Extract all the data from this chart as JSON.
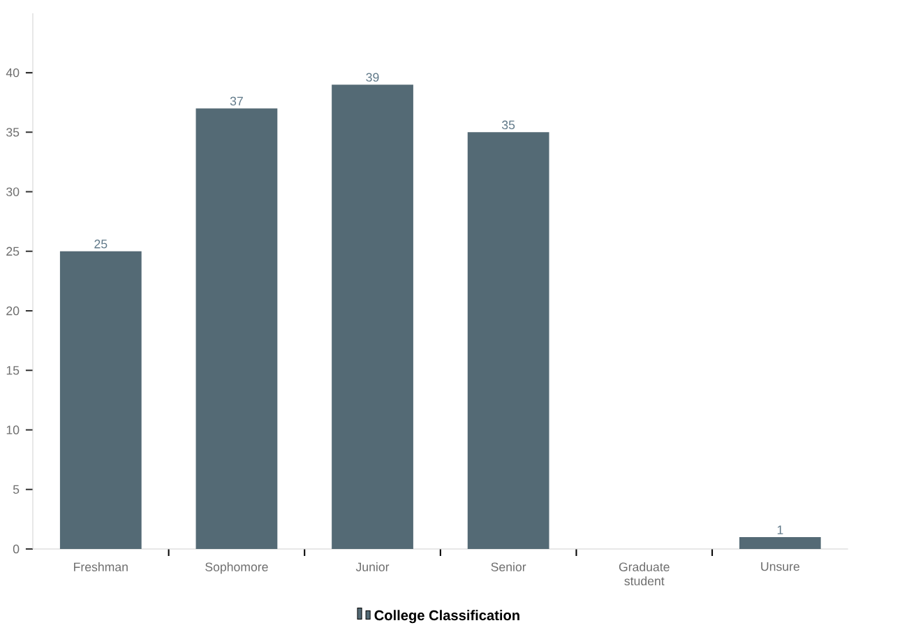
{
  "chart_data": {
    "type": "bar",
    "categories": [
      "Freshman",
      "Sophomore",
      "Junior",
      "Senior",
      "Graduate student",
      "Unsure"
    ],
    "series": [
      {
        "name": "College Classification",
        "color": "#546a75",
        "values": [
          25,
          37,
          39,
          35,
          0,
          1
        ],
        "value_labels": [
          "25",
          "37",
          "39",
          "35",
          null,
          "1"
        ]
      }
    ],
    "ylim": [
      0,
      45
    ],
    "yticks": [
      0,
      5,
      10,
      15,
      20,
      25,
      30,
      35,
      40
    ],
    "legend": "bottom"
  }
}
